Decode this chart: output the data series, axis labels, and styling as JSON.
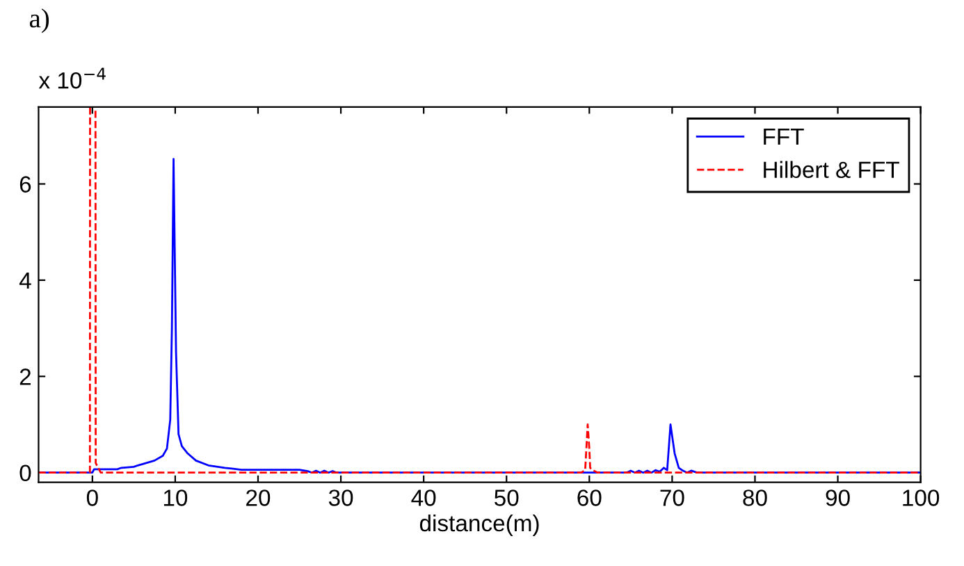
{
  "chart_data": {
    "type": "line",
    "title": "a)",
    "xlabel": "distance(m)",
    "annotations": [
      "x 10$^{−4}$"
    ],
    "xlim": [
      -6.5,
      100
    ],
    "xticks": [
      0,
      10,
      20,
      30,
      40,
      50,
      60,
      70,
      80,
      90,
      100
    ],
    "ylim": [
      -0.2,
      7.6
    ],
    "yticks": [
      0,
      2,
      4,
      6
    ],
    "grid": false,
    "legend": "top right",
    "series": [
      {
        "name": "FFT",
        "color": "#0000ff",
        "line_style": "solid",
        "x": [
          -6.5,
          0,
          0.2,
          3,
          3.5,
          5,
          5.5,
          6.5,
          7.5,
          8.5,
          9,
          9.4,
          9.6,
          9.8,
          10.1,
          10.4,
          10.8,
          11.5,
          12.5,
          14,
          16,
          17,
          18,
          25,
          26,
          26.5,
          27,
          27.5,
          28,
          28.5,
          29,
          29.5,
          30,
          64.5,
          65,
          65.5,
          66,
          66.5,
          67,
          67.5,
          68,
          68.5,
          69,
          69.4,
          69.8,
          70.3,
          70.8,
          71.2,
          71.8,
          72.3,
          73,
          100
        ],
        "values": [
          0,
          0,
          0.07,
          0.07,
          0.1,
          0.12,
          0.15,
          0.2,
          0.25,
          0.35,
          0.5,
          1.1,
          3.0,
          6.52,
          2.5,
          0.8,
          0.55,
          0.4,
          0.25,
          0.15,
          0.1,
          0.08,
          0.06,
          0.06,
          0.03,
          0.0,
          0.04,
          0.0,
          0.04,
          0.0,
          0.03,
          0.0,
          0,
          0,
          0.04,
          0.0,
          0.04,
          0.0,
          0.04,
          0.0,
          0.05,
          0.02,
          0.1,
          0.05,
          1.0,
          0.4,
          0.1,
          0.05,
          0.0,
          0.04,
          0,
          0
        ]
      },
      {
        "name": "Hilbert & FFT",
        "color": "#ff0000",
        "line_style": "dashed",
        "x": [
          -6.5,
          -0.3,
          -0.1,
          0.1,
          0.4,
          1,
          59,
          59.5,
          59.8,
          60.0,
          60.1,
          60.4,
          61,
          100
        ],
        "values": [
          0,
          0,
          null,
          null,
          0.2,
          0,
          0,
          0.05,
          1.0,
          0.5,
          0.1,
          0.05,
          0,
          0
        ]
      }
    ]
  }
}
